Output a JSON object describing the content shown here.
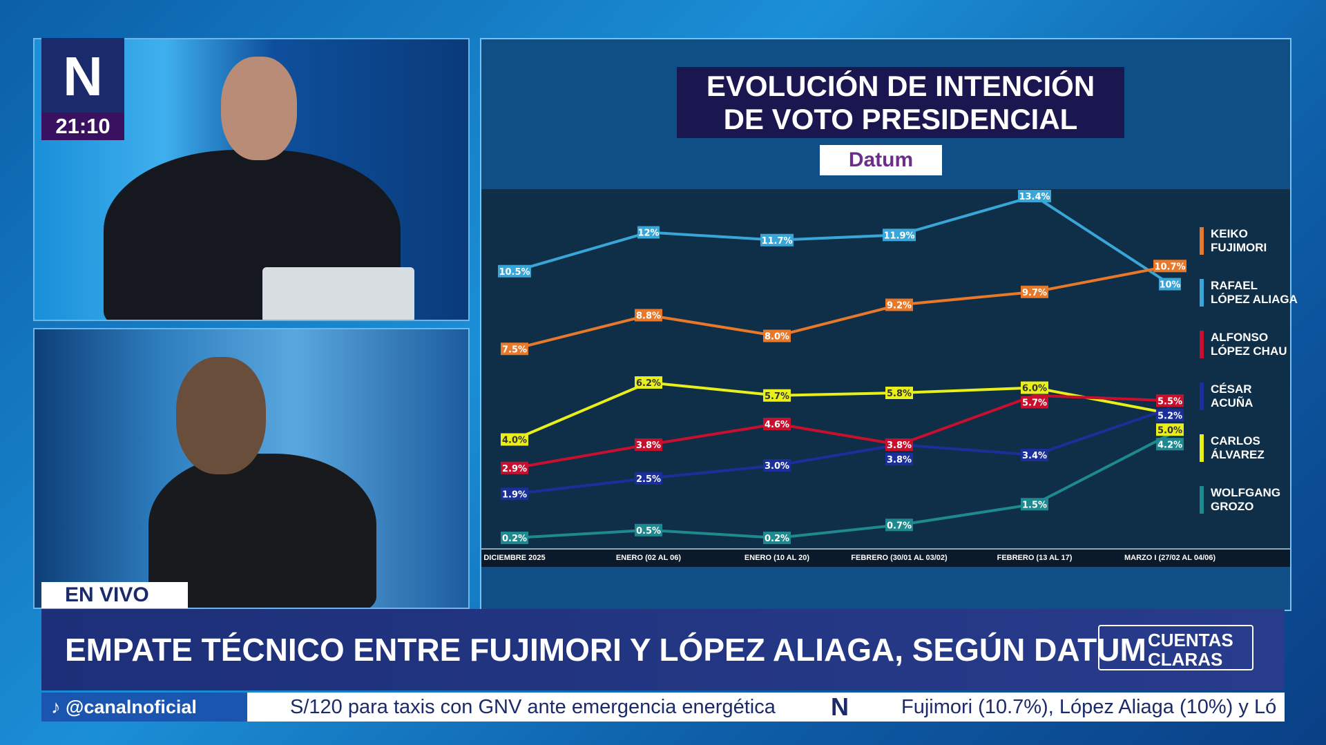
{
  "channel": {
    "logo": "N",
    "time": "21:10",
    "live_label": "EN VIVO"
  },
  "chart_panel": {
    "title_line1": "EVOLUCIÓN DE INTENCIÓN",
    "title_line2": "DE VOTO PRESIDENCIAL",
    "source_logo": "Datum"
  },
  "chart_data": {
    "type": "line",
    "categories": [
      "DICIEMBRE 2025",
      "ENERO (02 AL 06)",
      "ENERO (10 AL 20)",
      "FEBRERO (30/01 AL 03/02)",
      "FEBRERO (13 AL 17)",
      "MARZO I (27/02 AL 04/06)"
    ],
    "series": [
      {
        "name": "RAFAEL LÓPEZ ALIAGA",
        "color": "#3aa6d8",
        "values": [
          10.5,
          12,
          11.7,
          11.9,
          13.4,
          10
        ],
        "labels": [
          "10.5%",
          "12%",
          "11.7%",
          "11.9%",
          "13.4%",
          "10%"
        ]
      },
      {
        "name": "KEIKO FUJIMORI",
        "color": "#e8782a",
        "values": [
          7.5,
          8.8,
          8.0,
          9.2,
          9.7,
          10.7
        ],
        "labels": [
          "7.5%",
          "8.8%",
          "8.0%",
          "9.2%",
          "9.7%",
          "10.7%"
        ]
      },
      {
        "name": "CARLOS ÁLVAREZ",
        "color": "#e8ef1a",
        "values": [
          4.0,
          6.2,
          5.7,
          5.8,
          6.0,
          5.0
        ],
        "labels": [
          "4.0%",
          "6.2%",
          "5.7%",
          "5.8%",
          "6.0%",
          "5.0%"
        ]
      },
      {
        "name": "ALFONSO LÓPEZ CHAU",
        "color": "#c8102e",
        "values": [
          2.9,
          3.8,
          4.6,
          3.8,
          5.7,
          5.5
        ],
        "labels": [
          "2.9%",
          "3.8%",
          "4.6%",
          "3.8%",
          "5.7%",
          "5.5%"
        ]
      },
      {
        "name": "CÉSAR ACUÑA",
        "color": "#1a2f9a",
        "values": [
          1.9,
          2.5,
          3.0,
          3.8,
          3.4,
          5.2
        ],
        "labels": [
          "1.9%",
          "2.5%",
          "3.0%",
          "3.8%",
          "3.4%",
          "5.2%"
        ]
      },
      {
        "name": "WOLFGANG GROZO",
        "color": "#1e8a90",
        "values": [
          0.2,
          0.5,
          0.2,
          0.7,
          1.5,
          4.2
        ],
        "labels": [
          "0.2%",
          "0.5%",
          "0.2%",
          "0.7%",
          "1.5%",
          "4.2%"
        ]
      }
    ],
    "legend": [
      {
        "line1": "KEIKO",
        "line2": "FUJIMORI",
        "color": "#e8782a"
      },
      {
        "line1": "RAFAEL",
        "line2": "LÓPEZ ALIAGA",
        "color": "#3aa6d8"
      },
      {
        "line1": "ALFONSO",
        "line2": "LÓPEZ CHAU",
        "color": "#c8102e"
      },
      {
        "line1": "CÉSAR",
        "line2": "ACUÑA",
        "color": "#1a2f9a"
      },
      {
        "line1": "CARLOS",
        "line2": "ÁLVAREZ",
        "color": "#e8ef1a"
      },
      {
        "line1": "WOLFGANG",
        "line2": "GROZO",
        "color": "#1e8a90"
      }
    ],
    "legend_position": "right",
    "grid": false
  },
  "headline": "EMPATE TÉCNICO ENTRE FUJIMORI Y LÓPEZ ALIAGA, SEGÚN DATUM",
  "brand": {
    "line1": "CUENTAS",
    "line2": "CLARAS"
  },
  "ticker": {
    "handle": "@canalnoficial",
    "item1": "S/120 para taxis con GNV ante emergencia energética",
    "separator": "N",
    "item2": "Fujimori (10.7%), López Aliaga (10%) y Ló"
  }
}
